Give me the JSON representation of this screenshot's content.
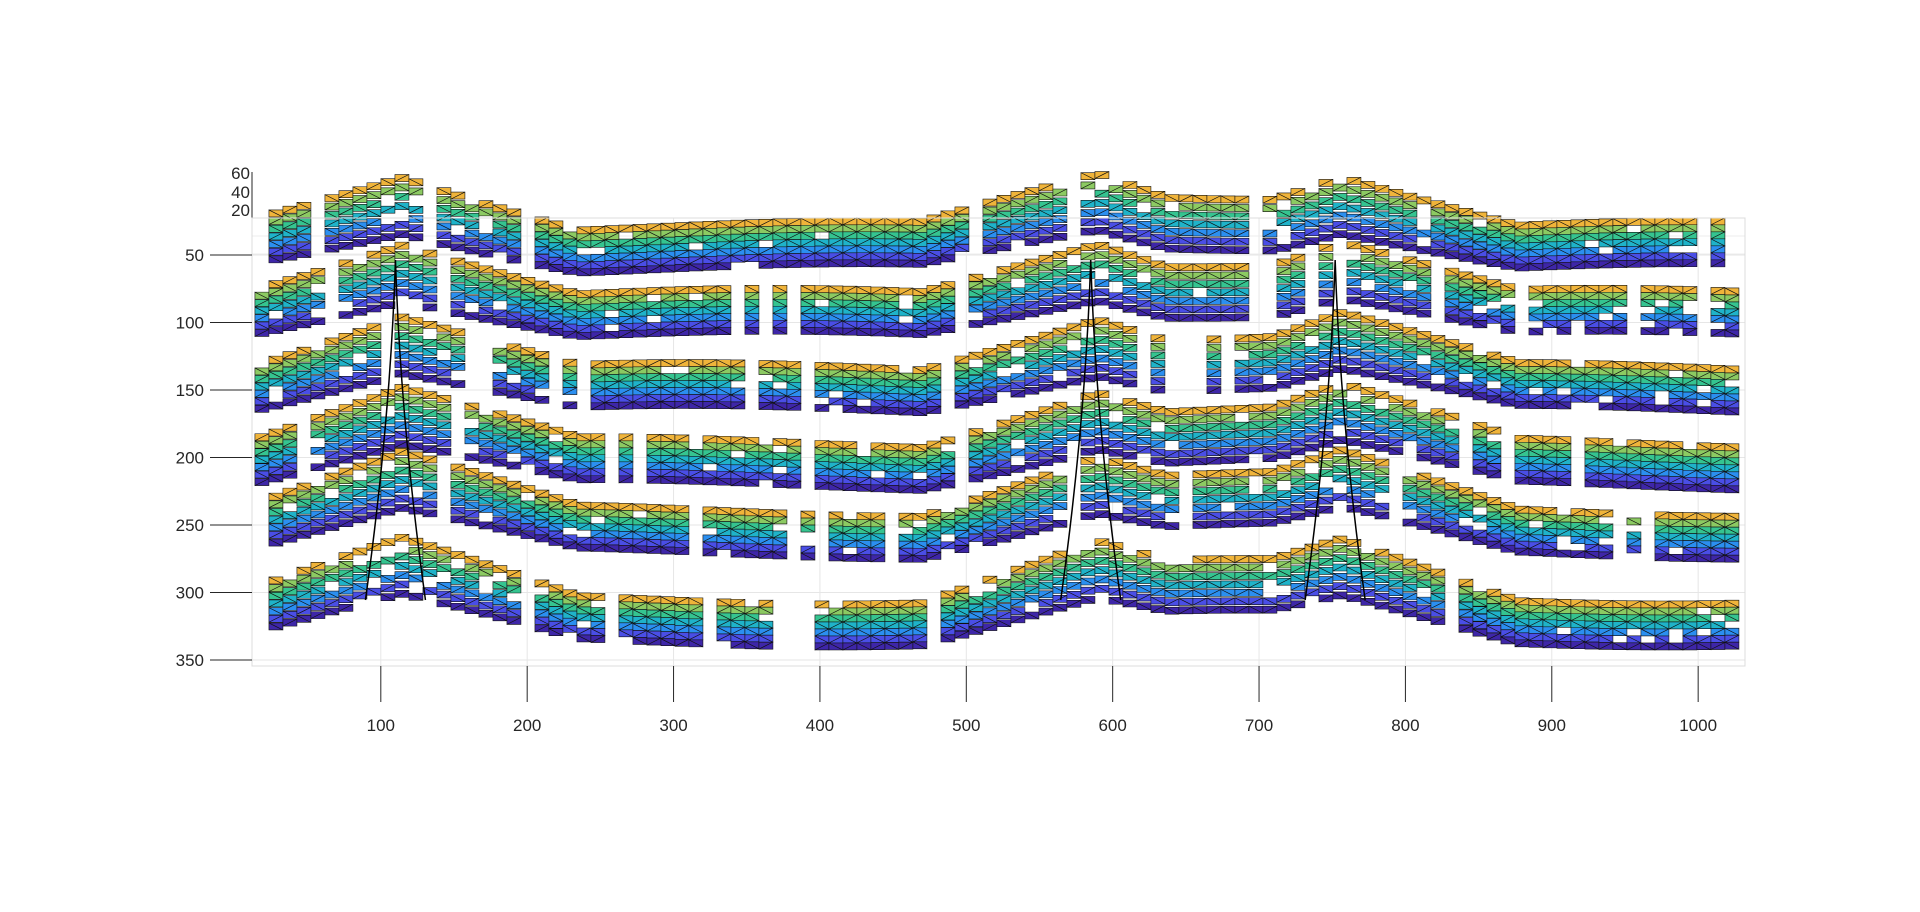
{
  "chart_data": {
    "type": "surface",
    "view": "3d-mesh-top-down-oblique",
    "colormap": [
      "#3e26a8",
      "#4a4ee6",
      "#2b8ff0",
      "#1fb3c9",
      "#35c490",
      "#8cca62",
      "#f0b43a"
    ],
    "edge_color": "#000000",
    "grid": true,
    "x_ticks": [
      100,
      200,
      300,
      400,
      500,
      600,
      700,
      800,
      900,
      1000
    ],
    "y_ticks": [
      50,
      100,
      150,
      200,
      250,
      300,
      350
    ],
    "z_ticks": [
      20,
      40,
      60
    ],
    "xlim": [
      12,
      1032
    ],
    "ylim": [
      0,
      358
    ],
    "zlim": [
      0,
      60
    ],
    "bands": [
      {
        "y_center": 45,
        "z_amp": 30
      },
      {
        "y_center": 95,
        "z_amp": 30
      },
      {
        "y_center": 150,
        "z_amp": 30
      },
      {
        "y_center": 205,
        "z_amp": 30
      },
      {
        "y_center": 255,
        "z_amp": 30
      },
      {
        "y_center": 320,
        "z_amp": 30
      }
    ],
    "ridges_x": [
      110,
      585,
      752
    ]
  }
}
